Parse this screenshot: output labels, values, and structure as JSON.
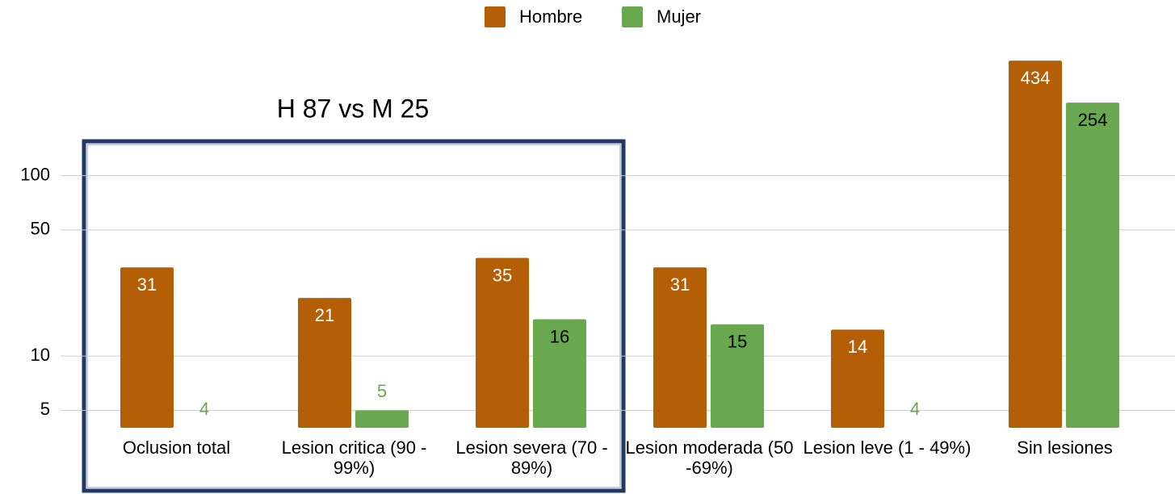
{
  "chart_data": {
    "type": "bar",
    "annotation": "H 87 vs M 25",
    "categories": [
      "Oclusion total",
      "Lesion critica (90 - 99%)",
      "Lesion severa (70 - 89%)",
      "Lesion moderada (50 -69%)",
      "Lesion leve (1 - 49%)",
      "Sin lesiones"
    ],
    "series": [
      {
        "name": "Hombre",
        "color": "#b45f06",
        "values": [
          31,
          21,
          35,
          31,
          14,
          434
        ]
      },
      {
        "name": "Mujer",
        "color": "#6aa84f",
        "values": [
          4,
          5,
          16,
          15,
          4,
          254
        ]
      }
    ],
    "log_scale": true,
    "ylim": [
      4,
      500
    ],
    "yticks": [
      5,
      10,
      50,
      100
    ],
    "grid": true,
    "legend": "top"
  }
}
